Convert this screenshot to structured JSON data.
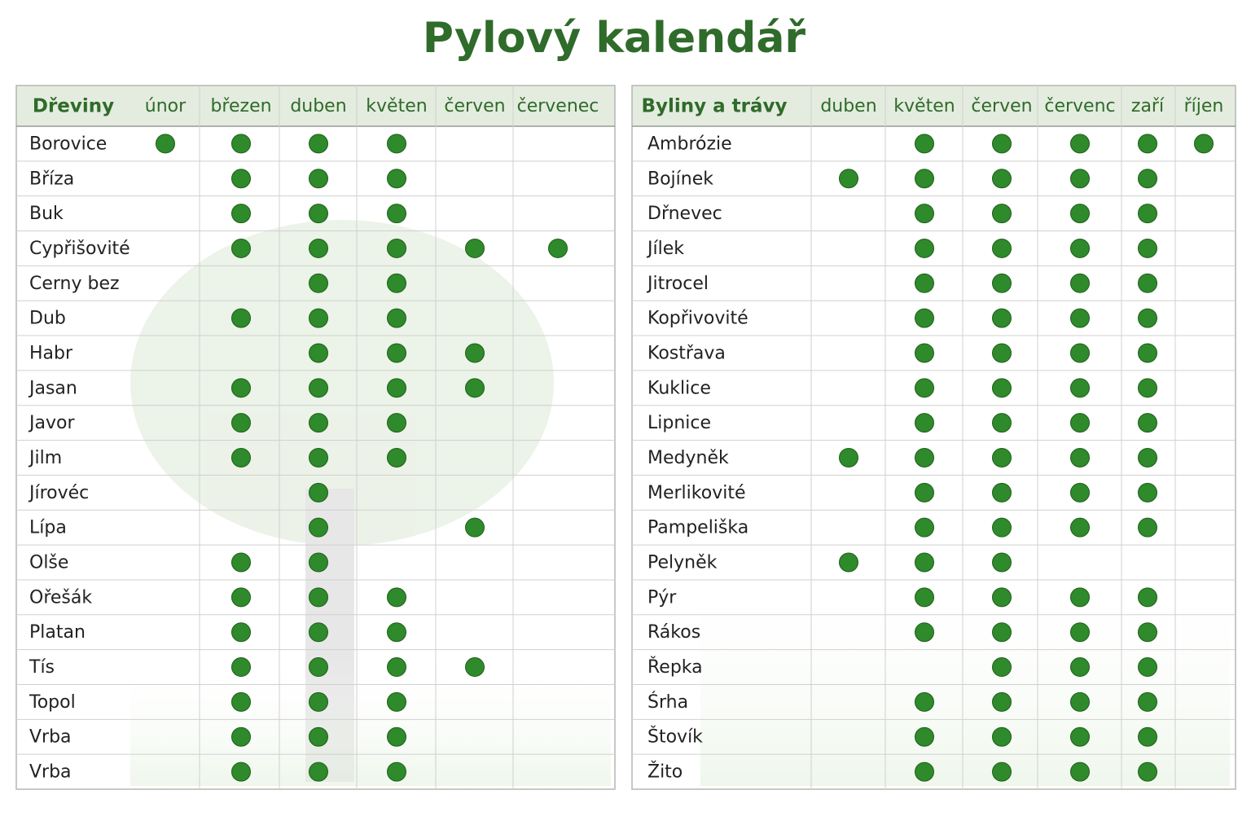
{
  "title": "Pylový kalendář",
  "tables": [
    {
      "columns": [
        "Dřeviny",
        "únor",
        "březen",
        "duben",
        "květen",
        "červen",
        "červenec"
      ],
      "rows": [
        {
          "name": "Borovice",
          "cells": [
            true,
            true,
            true,
            true,
            false,
            false
          ]
        },
        {
          "name": "Bříza",
          "cells": [
            false,
            true,
            true,
            true,
            false,
            false
          ]
        },
        {
          "name": "Buk",
          "cells": [
            false,
            true,
            true,
            true,
            false,
            false
          ]
        },
        {
          "name": "Cypřišovité",
          "cells": [
            false,
            true,
            true,
            true,
            true,
            true
          ]
        },
        {
          "name": "Cerny bez",
          "cells": [
            false,
            false,
            true,
            true,
            false,
            false
          ]
        },
        {
          "name": "Dub",
          "cells": [
            false,
            true,
            true,
            true,
            false,
            false
          ]
        },
        {
          "name": "Habr",
          "cells": [
            false,
            false,
            true,
            true,
            true,
            false
          ]
        },
        {
          "name": "Jasan",
          "cells": [
            false,
            true,
            true,
            true,
            true,
            false
          ]
        },
        {
          "name": "Javor",
          "cells": [
            false,
            true,
            true,
            true,
            false,
            false
          ]
        },
        {
          "name": "Jilm",
          "cells": [
            false,
            true,
            true,
            true,
            false,
            false
          ]
        },
        {
          "name": "Jírovéc",
          "cells": [
            false,
            false,
            true,
            false,
            false,
            false
          ]
        },
        {
          "name": "Lípa",
          "cells": [
            false,
            false,
            true,
            false,
            true,
            false
          ]
        },
        {
          "name": "Olše",
          "cells": [
            false,
            true,
            true,
            false,
            false,
            false
          ]
        },
        {
          "name": "Ořešák",
          "cells": [
            false,
            true,
            true,
            true,
            false,
            false
          ]
        },
        {
          "name": "Platan",
          "cells": [
            false,
            true,
            true,
            true,
            false,
            false
          ]
        },
        {
          "name": "Tís",
          "cells": [
            false,
            true,
            true,
            true,
            true,
            false
          ]
        },
        {
          "name": "Topol",
          "cells": [
            false,
            true,
            true,
            true,
            false,
            false
          ]
        },
        {
          "name": "Vrba",
          "cells": [
            false,
            true,
            true,
            true,
            false,
            false
          ]
        },
        {
          "name": "Vrba",
          "cells": [
            false,
            true,
            true,
            true,
            false,
            false
          ]
        }
      ]
    },
    {
      "columns": [
        "Byliny a trávy",
        "duben",
        "květen",
        "červen",
        "červenc",
        "zaří",
        "říjen"
      ],
      "rows": [
        {
          "name": "Ambrózie",
          "cells": [
            false,
            true,
            true,
            true,
            true,
            true
          ]
        },
        {
          "name": "Bojínek",
          "cells": [
            true,
            true,
            true,
            true,
            true,
            false
          ]
        },
        {
          "name": "Dřnevec",
          "cells": [
            false,
            true,
            true,
            true,
            true,
            false
          ]
        },
        {
          "name": "Jílek",
          "cells": [
            false,
            true,
            true,
            true,
            true,
            false
          ]
        },
        {
          "name": "Jitrocel",
          "cells": [
            false,
            true,
            true,
            true,
            true,
            false
          ]
        },
        {
          "name": "Kopřivovité",
          "cells": [
            false,
            true,
            true,
            true,
            true,
            false
          ]
        },
        {
          "name": "Kostřava",
          "cells": [
            false,
            true,
            true,
            true,
            true,
            false
          ]
        },
        {
          "name": "Kuklice",
          "cells": [
            false,
            true,
            true,
            true,
            true,
            false
          ]
        },
        {
          "name": "Lipnice",
          "cells": [
            false,
            true,
            true,
            true,
            true,
            false
          ]
        },
        {
          "name": "Medyněk",
          "cells": [
            true,
            true,
            true,
            true,
            true,
            false
          ]
        },
        {
          "name": "Merlikovité",
          "cells": [
            false,
            true,
            true,
            true,
            true,
            false
          ]
        },
        {
          "name": "Pampeliška",
          "cells": [
            false,
            true,
            true,
            true,
            true,
            false
          ]
        },
        {
          "name": "Pelyněk",
          "cells": [
            true,
            true,
            true,
            false,
            false,
            false
          ]
        },
        {
          "name": "Pýr",
          "cells": [
            false,
            true,
            true,
            true,
            true,
            false
          ]
        },
        {
          "name": "Rákos",
          "cells": [
            false,
            true,
            true,
            true,
            true,
            false
          ]
        },
        {
          "name": "Řepka",
          "cells": [
            false,
            false,
            true,
            true,
            true,
            false
          ]
        },
        {
          "name": "Śrha",
          "cells": [
            false,
            true,
            true,
            true,
            true,
            false
          ]
        },
        {
          "name": "Štovík",
          "cells": [
            false,
            true,
            true,
            true,
            true,
            false
          ]
        },
        {
          "name": "Žito",
          "cells": [
            false,
            true,
            true,
            true,
            true,
            false
          ]
        }
      ]
    }
  ]
}
